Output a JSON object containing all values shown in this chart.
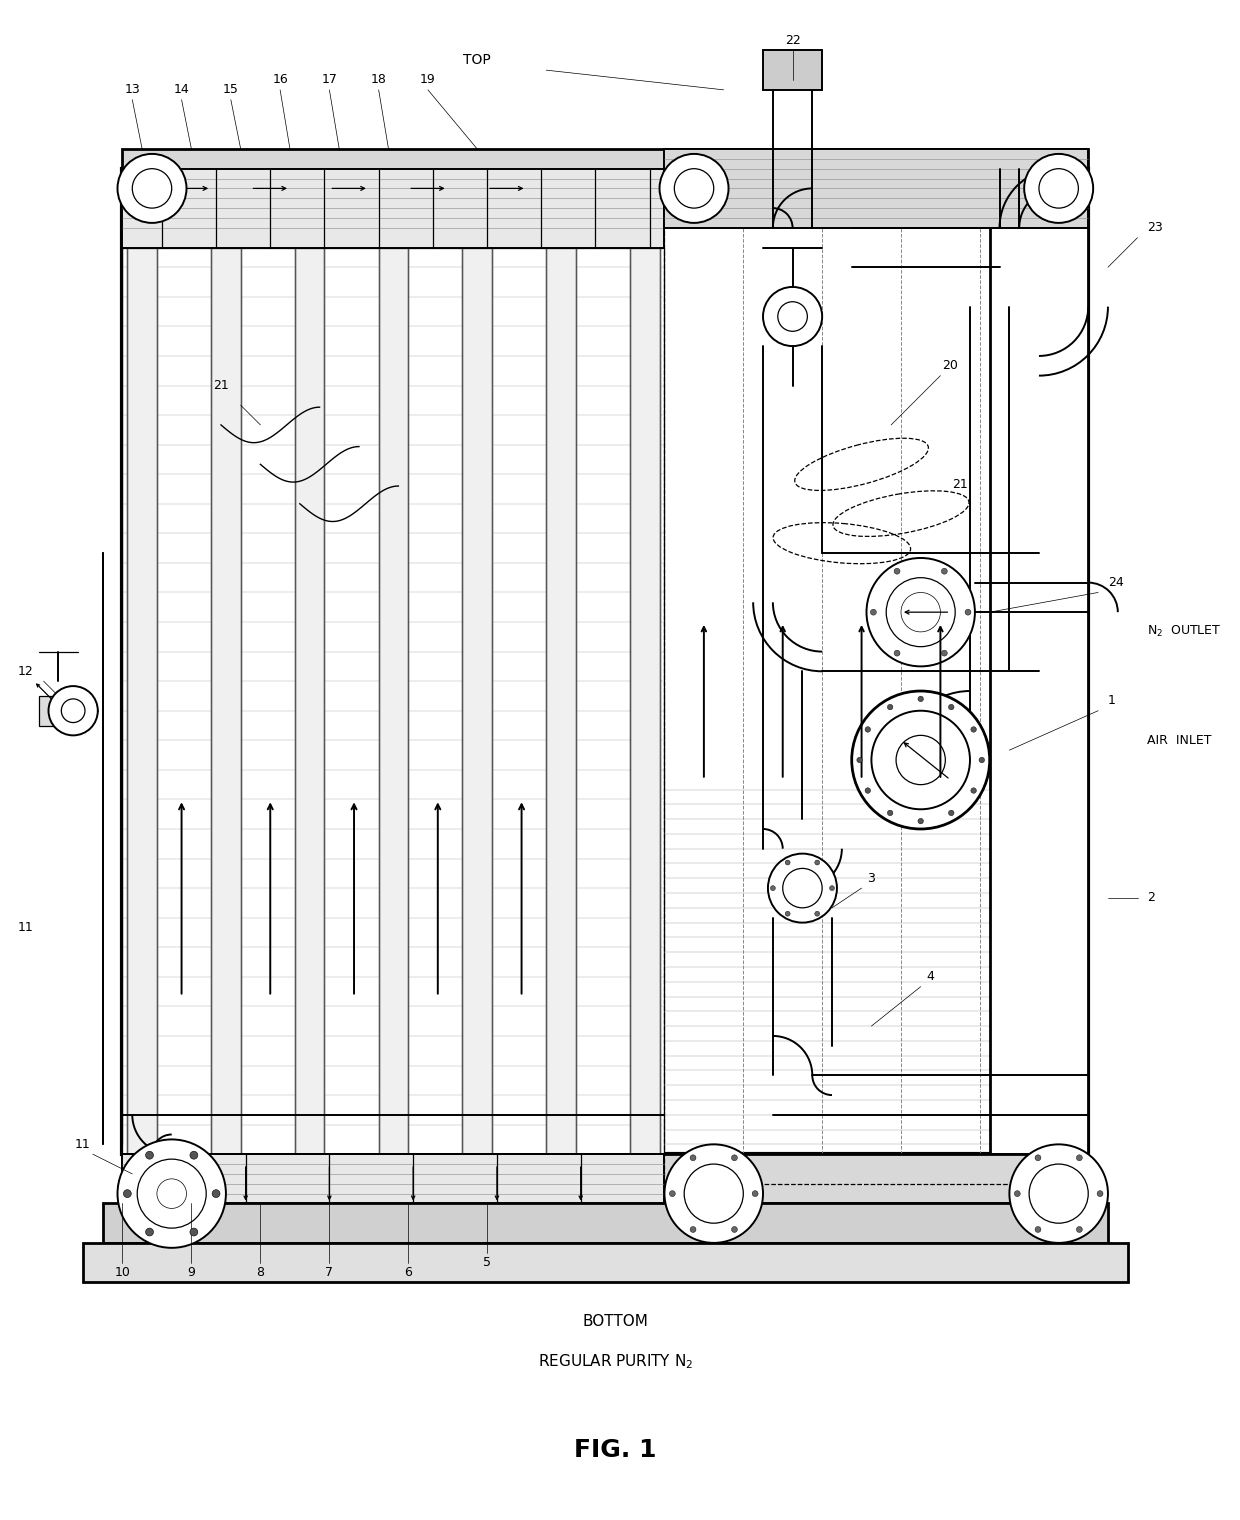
{
  "bg_color": "#ffffff",
  "line_color": "#000000",
  "fig_width": 12.4,
  "fig_height": 15.2,
  "title": "FIG. 1",
  "bottom_label1": "BOTTOM",
  "bottom_label2": "REGULAR PURITY N$_2$",
  "top_label": "TOP",
  "n2_outlet_text": "N$_2$  OUTLET",
  "air_inlet_text": "AIR  INLET"
}
